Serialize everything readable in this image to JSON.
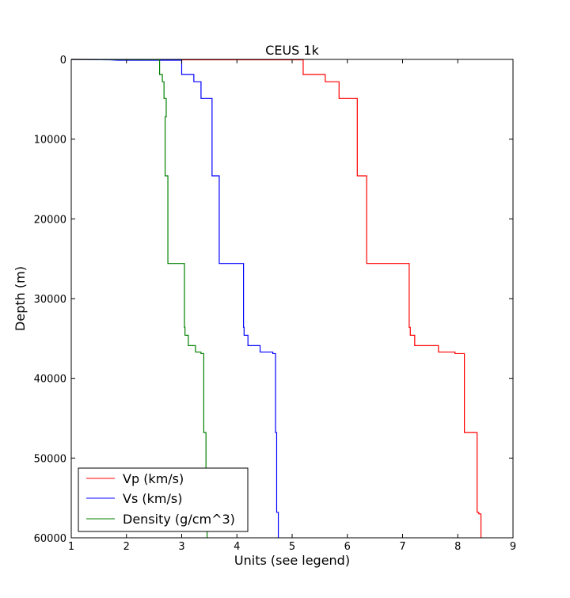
{
  "chart_data": {
    "type": "line",
    "title": "CEUS 1k",
    "xlabel": "Units (see legend)",
    "ylabel": "Depth (m)",
    "xlim": [
      1,
      9
    ],
    "ylim": [
      0,
      60000
    ],
    "y_inverted": true,
    "grid": false,
    "legend_position": "lower-left",
    "xticks": [
      1,
      2,
      3,
      4,
      5,
      6,
      7,
      8,
      9
    ],
    "yticks": [
      0,
      10000,
      20000,
      30000,
      40000,
      50000,
      60000
    ],
    "xtick_labels": [
      "1",
      "2",
      "3",
      "4",
      "5",
      "6",
      "7",
      "8",
      "9"
    ],
    "ytick_labels": [
      "0",
      "10000",
      "20000",
      "30000",
      "40000",
      "50000",
      "60000"
    ],
    "series": [
      {
        "name": "Vp (km/s)",
        "color": "#ff0000",
        "x": [
          1.0,
          3.0,
          5.2,
          5.2,
          5.6,
          5.6,
          5.85,
          5.85,
          6.18,
          6.18,
          6.18,
          6.18,
          6.35,
          6.35,
          7.12,
          7.12,
          7.14,
          7.14,
          7.22,
          7.22,
          7.65,
          7.65,
          7.95,
          7.95,
          8.12,
          8.12,
          8.35,
          8.35,
          8.38,
          8.38,
          8.42,
          8.42
        ],
        "y": [
          0,
          50,
          50,
          1900,
          1900,
          2800,
          2800,
          4900,
          4900,
          7200,
          7200,
          14600,
          14600,
          25600,
          25600,
          33600,
          33600,
          34600,
          34600,
          35900,
          35900,
          36700,
          36700,
          36900,
          36900,
          46800,
          46800,
          56800,
          56800,
          57000,
          57000,
          60000
        ]
      },
      {
        "name": "Vs (km/s)",
        "color": "#0000ff",
        "x": [
          1.0,
          1.7,
          1.85,
          2.0,
          3.0,
          3.0,
          3.22,
          3.22,
          3.35,
          3.35,
          3.55,
          3.55,
          3.55,
          3.55,
          3.68,
          3.68,
          4.12,
          4.12,
          4.13,
          4.13,
          4.2,
          4.2,
          4.42,
          4.42,
          4.65,
          4.65,
          4.7,
          4.7,
          4.72,
          4.72,
          4.75,
          4.75
        ],
        "y": [
          0,
          50,
          100,
          100,
          100,
          1900,
          1900,
          2800,
          2800,
          4900,
          4900,
          7200,
          7200,
          14600,
          14600,
          25600,
          25600,
          33600,
          33600,
          34600,
          34600,
          35900,
          35900,
          36700,
          36700,
          36900,
          36900,
          46800,
          46800,
          56800,
          56800,
          60000
        ]
      },
      {
        "name": "Density (g/cm^3)",
        "color": "#008000",
        "x": [
          1.0,
          2.55,
          2.58,
          2.6,
          2.6,
          2.65,
          2.65,
          2.68,
          2.68,
          2.72,
          2.72,
          2.7,
          2.7,
          2.75,
          2.75,
          3.05,
          3.05,
          3.06,
          3.06,
          3.12,
          3.12,
          3.25,
          3.25,
          3.35,
          3.35,
          3.4,
          3.4,
          3.44,
          3.44,
          3.45,
          3.45,
          3.46,
          3.46
        ],
        "y": [
          0,
          30,
          50,
          50,
          1900,
          1900,
          2800,
          2800,
          4900,
          4900,
          7200,
          7200,
          14600,
          14600,
          25600,
          25600,
          33600,
          33600,
          34600,
          34600,
          35900,
          35900,
          36700,
          36700,
          36900,
          36900,
          46800,
          46800,
          56800,
          56800,
          57000,
          57000,
          60000
        ]
      }
    ]
  }
}
